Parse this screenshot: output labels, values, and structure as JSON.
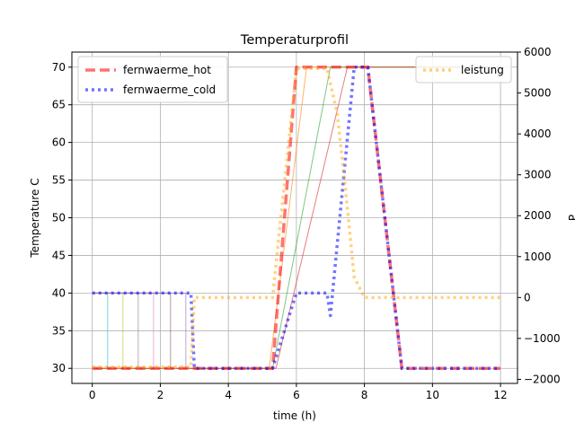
{
  "chart_data": {
    "type": "line",
    "title": "Temperaturprofil",
    "xlabel": "time (h)",
    "ylabel": "Temperature C",
    "ylabel_right": "P",
    "xlim": [
      -0.6,
      12.5
    ],
    "ylim": [
      28.0,
      72.0
    ],
    "ylim_right": [
      -2100,
      6000
    ],
    "x_ticks": [
      0,
      2,
      4,
      6,
      8,
      10,
      12
    ],
    "y_ticks": [
      30,
      35,
      40,
      45,
      50,
      55,
      60,
      65,
      70
    ],
    "y_right_ticks": [
      -2000,
      -1000,
      0,
      1000,
      2000,
      3000,
      4000,
      5000,
      6000
    ],
    "grid": true,
    "legend_left_position": "upper-left",
    "legend_right_position": "upper-right",
    "series": [
      {
        "name": "fernwaerme_hot",
        "axis": "left",
        "color": "#ff0000",
        "style": "dashed",
        "x": [
          0,
          5.3,
          6.0,
          8.1,
          9.1,
          12.0
        ],
        "y": [
          30,
          30,
          70,
          70,
          30,
          30
        ]
      },
      {
        "name": "fernwaerme_cold",
        "axis": "left",
        "color": "#0000ff",
        "style": "dotted",
        "x": [
          0,
          2.7,
          2.9,
          3.0,
          5.0,
          5.3,
          6.0,
          6.9,
          7.0,
          7.7,
          8.1,
          9.1,
          12.0
        ],
        "y": [
          40,
          40,
          40,
          30,
          30,
          30,
          40,
          40,
          37,
          70,
          70,
          30,
          30
        ]
      },
      {
        "name": "leistung",
        "axis": "right",
        "color": "#ffa500",
        "style": "dotted",
        "x": [
          0,
          2.7,
          2.9,
          3.0,
          5.3,
          6.0,
          6.9,
          7.2,
          7.4,
          7.7,
          8.0,
          12.0
        ],
        "y": [
          -1700,
          -1700,
          -1700,
          0,
          0,
          5600,
          5600,
          4500,
          3000,
          500,
          0,
          0
        ]
      }
    ],
    "helper_lines": {
      "colors": [
        "#17becf",
        "#bcbd22",
        "#7f7f7f",
        "#e377c2",
        "#8c564b",
        "#9467bd",
        "#ff7f0e",
        "#2ca02c",
        "#d62728"
      ],
      "drop_times": [
        0.45,
        0.9,
        1.35,
        1.8,
        2.3,
        2.75
      ],
      "rise_starts": [
        5.2,
        5.3,
        5.4
      ],
      "rise_ends": [
        6.3,
        7.0,
        7.5
      ],
      "upper_y": 40,
      "lower_y": 30,
      "high_y": 70
    }
  }
}
